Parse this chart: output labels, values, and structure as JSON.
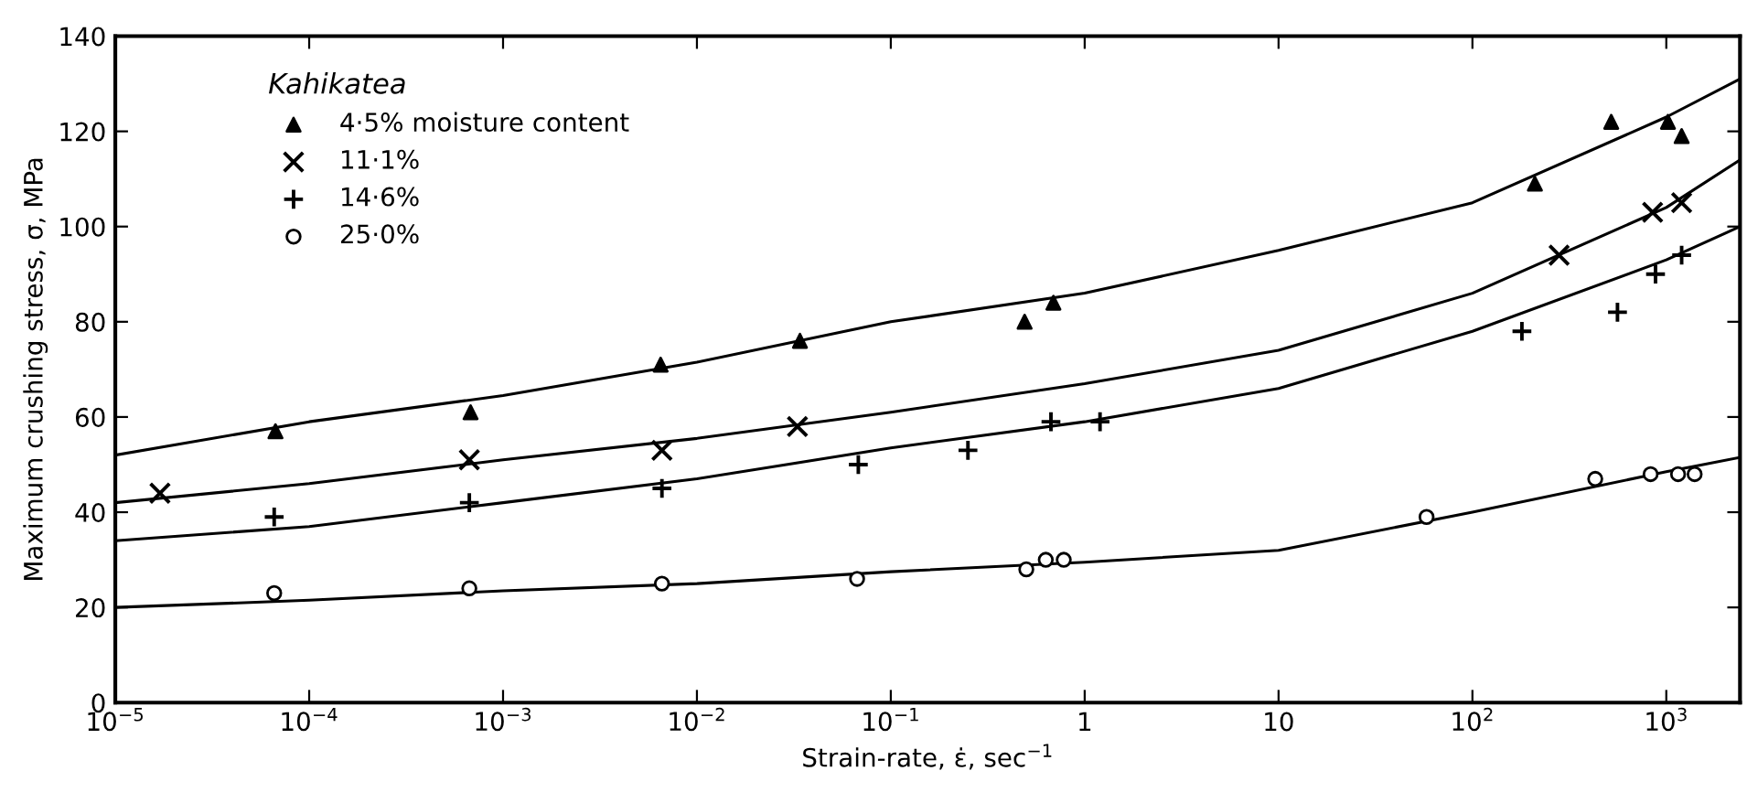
{
  "chart_data": {
    "type": "scatter",
    "xlabel": "Strain-rate, ε̇, sec$^{−1}$",
    "ylabel": "Maximum crushing stress, σ, MPa",
    "legend_title": "Kahikatea",
    "log": "x",
    "xlim": [
      1e-05,
      2400
    ],
    "ylim": [
      0,
      140
    ],
    "xticks": [
      {
        "value": 1e-05,
        "label": "10$^{−5}$"
      },
      {
        "value": 0.0001,
        "label": "10$^{−4}$"
      },
      {
        "value": 0.001,
        "label": "10$^{−3}$"
      },
      {
        "value": 0.01,
        "label": "10$^{−2}$"
      },
      {
        "value": 0.1,
        "label": "10$^{−1}$"
      },
      1,
      10,
      {
        "value": 100,
        "label": "10$^{2}$"
      },
      {
        "value": 1000,
        "label": "10$^{3}$"
      }
    ],
    "yticks": [
      0,
      20,
      40,
      60,
      80,
      100,
      120,
      140
    ],
    "grid": false,
    "legend": "top left",
    "series": [
      {
        "name": "4·5% moisture content",
        "color": "#000000",
        "marker": "triangle",
        "x": [
          6.7e-05,
          0.00068,
          0.0065,
          0.034,
          0.49,
          0.69,
          210,
          520,
          1020,
          1200
        ],
        "values": [
          57,
          61,
          71,
          76,
          80,
          84,
          109,
          122,
          122,
          119
        ]
      },
      {
        "name": "11·1%",
        "color": "#000000",
        "marker": "cross",
        "x": [
          1.7e-05,
          0.00067,
          0.0066,
          0.033,
          280,
          850,
          1200
        ],
        "values": [
          44,
          51,
          53,
          58,
          94,
          103,
          105
        ]
      },
      {
        "name": "14·6%",
        "color": "#000000",
        "marker": "plus",
        "x": [
          6.6e-05,
          0.00067,
          0.0066,
          0.068,
          0.25,
          0.67,
          1.2,
          180,
          560,
          880,
          1200
        ],
        "values": [
          39,
          42,
          45,
          50,
          53,
          59,
          59,
          78,
          82,
          90,
          94
        ]
      },
      {
        "name": "25·0%",
        "color": "#000000",
        "marker": "circle",
        "x": [
          6.6e-05,
          0.00067,
          0.0066,
          0.067,
          0.5,
          0.63,
          0.78,
          58,
          430,
          830,
          1150,
          1400
        ],
        "values": [
          23,
          24,
          25,
          26,
          28,
          30,
          30,
          39,
          47,
          48,
          48,
          48
        ]
      },
      {
        "type": "line",
        "color": "#000000",
        "line_style": "solid",
        "x": [
          1e-05,
          0.0001,
          0.001,
          0.01,
          0.1,
          1,
          10,
          100,
          1000,
          2400
        ],
        "values": [
          52,
          59,
          64.5,
          71.5,
          80,
          86,
          95,
          105,
          123,
          131
        ]
      },
      {
        "type": "line",
        "color": "#000000",
        "line_style": "solid",
        "x": [
          1e-05,
          0.0001,
          0.001,
          0.01,
          0.1,
          1,
          10,
          100,
          1000,
          2400
        ],
        "values": [
          42,
          46,
          51,
          55.5,
          61,
          67,
          74,
          86,
          104,
          114
        ]
      },
      {
        "type": "line",
        "color": "#000000",
        "line_style": "solid",
        "x": [
          1e-05,
          0.0001,
          0.001,
          0.01,
          0.1,
          1,
          10,
          100,
          1000,
          2400
        ],
        "values": [
          34,
          37,
          42,
          47,
          53.5,
          59,
          66,
          78,
          93,
          100
        ]
      },
      {
        "type": "line",
        "color": "#000000",
        "line_style": "solid",
        "x": [
          1e-05,
          0.0001,
          0.001,
          0.01,
          0.1,
          1,
          10,
          100,
          1000,
          2400
        ],
        "values": [
          20,
          21.5,
          23.5,
          25,
          27.5,
          29.5,
          32,
          40,
          48.5,
          51.5
        ]
      }
    ]
  }
}
